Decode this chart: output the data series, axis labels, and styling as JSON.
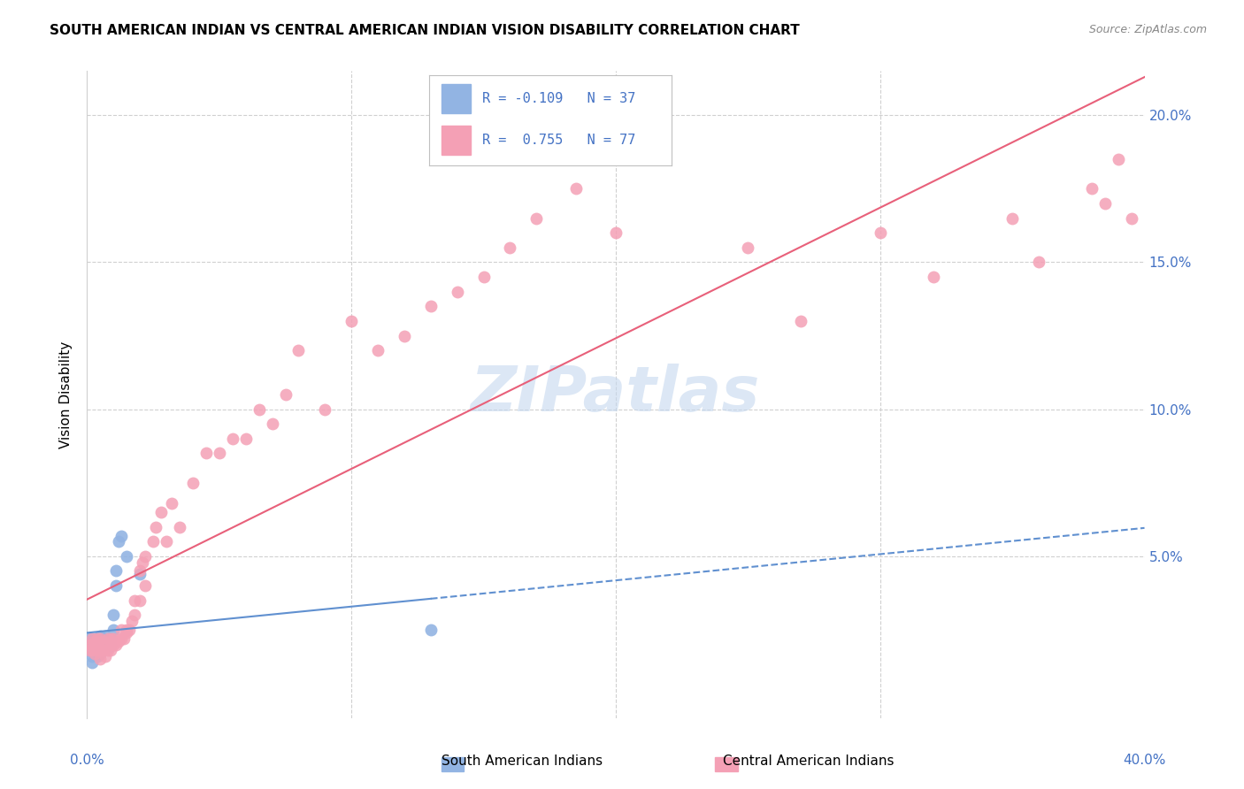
{
  "title": "SOUTH AMERICAN INDIAN VS CENTRAL AMERICAN INDIAN VISION DISABILITY CORRELATION CHART",
  "source": "Source: ZipAtlas.com",
  "ylabel": "Vision Disability",
  "xlim": [
    0.0,
    0.4
  ],
  "ylim": [
    -0.005,
    0.215
  ],
  "blue_color": "#92b4e3",
  "pink_color": "#f4a0b5",
  "blue_line_color": "#6090d0",
  "pink_line_color": "#e8607a",
  "grid_color": "#d0d0d0",
  "watermark_color": "#c5d8ef",
  "tick_color": "#4472c4",
  "sa_x": [
    0.001,
    0.001,
    0.001,
    0.002,
    0.002,
    0.002,
    0.002,
    0.002,
    0.003,
    0.003,
    0.003,
    0.004,
    0.004,
    0.004,
    0.005,
    0.005,
    0.005,
    0.005,
    0.006,
    0.006,
    0.006,
    0.007,
    0.007,
    0.007,
    0.008,
    0.008,
    0.009,
    0.009,
    0.01,
    0.01,
    0.011,
    0.011,
    0.012,
    0.013,
    0.015,
    0.02,
    0.13
  ],
  "sa_y": [
    0.022,
    0.02,
    0.018,
    0.021,
    0.019,
    0.018,
    0.016,
    0.014,
    0.022,
    0.02,
    0.017,
    0.021,
    0.019,
    0.016,
    0.023,
    0.021,
    0.019,
    0.017,
    0.022,
    0.02,
    0.018,
    0.023,
    0.021,
    0.019,
    0.021,
    0.019,
    0.022,
    0.02,
    0.03,
    0.025,
    0.045,
    0.04,
    0.055,
    0.057,
    0.05,
    0.044,
    0.025
  ],
  "ca_x": [
    0.001,
    0.001,
    0.002,
    0.002,
    0.002,
    0.003,
    0.003,
    0.003,
    0.004,
    0.004,
    0.004,
    0.005,
    0.005,
    0.005,
    0.006,
    0.006,
    0.007,
    0.007,
    0.008,
    0.008,
    0.009,
    0.009,
    0.01,
    0.01,
    0.011,
    0.012,
    0.013,
    0.013,
    0.014,
    0.015,
    0.015,
    0.016,
    0.017,
    0.018,
    0.018,
    0.02,
    0.02,
    0.021,
    0.022,
    0.022,
    0.025,
    0.026,
    0.028,
    0.03,
    0.032,
    0.035,
    0.04,
    0.045,
    0.05,
    0.055,
    0.06,
    0.065,
    0.07,
    0.075,
    0.08,
    0.09,
    0.1,
    0.11,
    0.12,
    0.13,
    0.14,
    0.15,
    0.16,
    0.17,
    0.185,
    0.2,
    0.21,
    0.25,
    0.27,
    0.3,
    0.32,
    0.35,
    0.36,
    0.38,
    0.385,
    0.39,
    0.395
  ],
  "ca_y": [
    0.02,
    0.018,
    0.022,
    0.02,
    0.018,
    0.021,
    0.019,
    0.017,
    0.022,
    0.02,
    0.018,
    0.022,
    0.018,
    0.015,
    0.021,
    0.018,
    0.02,
    0.016,
    0.022,
    0.018,
    0.022,
    0.018,
    0.022,
    0.02,
    0.02,
    0.021,
    0.025,
    0.022,
    0.022,
    0.025,
    0.024,
    0.025,
    0.028,
    0.035,
    0.03,
    0.045,
    0.035,
    0.048,
    0.05,
    0.04,
    0.055,
    0.06,
    0.065,
    0.055,
    0.068,
    0.06,
    0.075,
    0.085,
    0.085,
    0.09,
    0.09,
    0.1,
    0.095,
    0.105,
    0.12,
    0.1,
    0.13,
    0.12,
    0.125,
    0.135,
    0.14,
    0.145,
    0.155,
    0.165,
    0.175,
    0.16,
    0.185,
    0.155,
    0.13,
    0.16,
    0.145,
    0.165,
    0.15,
    0.175,
    0.17,
    0.185,
    0.165
  ]
}
